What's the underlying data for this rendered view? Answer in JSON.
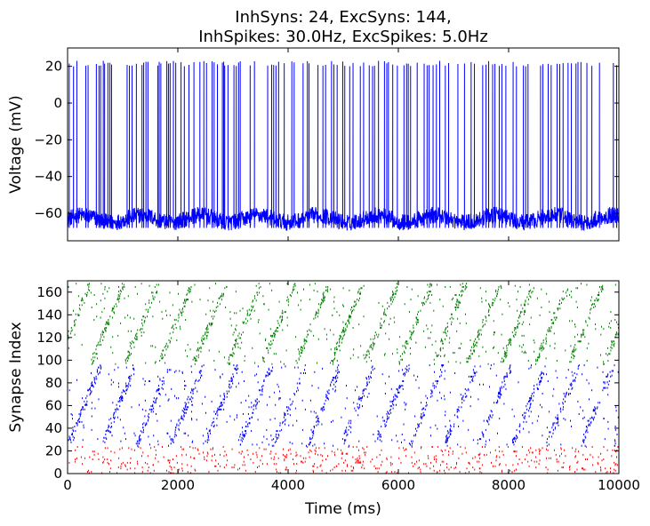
{
  "chart_data": [
    {
      "type": "line",
      "title_line1": "InhSyns: 24, ExcSyns: 144,",
      "title_line2": "InhSpikes: 30.0Hz, ExcSpikes: 5.0Hz",
      "xlabel": "",
      "ylabel": "Voltage (mV)",
      "xlim": [
        0,
        10000
      ],
      "ylim": [
        -75,
        30
      ],
      "yticks": [
        20,
        0,
        -20,
        -40,
        -60
      ],
      "ytick_labels": [
        "20",
        "0",
        "−20",
        "−40",
        "−60"
      ],
      "xticks": [
        0,
        2000,
        4000,
        6000,
        8000,
        10000
      ],
      "grid": false,
      "series": [
        {
          "color": "#0000ff",
          "baseline_mV": -63,
          "peak_mV": 23,
          "spike_times_ms": [
            30,
            110,
            170,
            330,
            370,
            520,
            570,
            600,
            650,
            670,
            730,
            770,
            800,
            1080,
            1120,
            1170,
            1250,
            1350,
            1380,
            1420,
            1460,
            1640,
            1660,
            1690,
            1800,
            1830,
            1860,
            1920,
            1960,
            2060,
            2120,
            2200,
            2290,
            2400,
            2470,
            2520,
            2620,
            2660,
            2720,
            2810,
            2830,
            2850,
            2910,
            3020,
            3060,
            3100,
            3130,
            3310,
            3390,
            3630,
            3700,
            3740,
            3780,
            3830,
            3930,
            4070,
            4110,
            4270,
            4350,
            4380,
            4540,
            4630,
            4680,
            4790,
            4830,
            4890,
            4990,
            5030,
            5120,
            5180,
            5310,
            5370,
            5470,
            5530,
            5570,
            5640,
            5750,
            5790,
            5820,
            5900,
            5980,
            6100,
            6150,
            6180,
            6220,
            6340,
            6470,
            6520,
            6560,
            6630,
            6690,
            6750,
            6850,
            6910,
            7080,
            7200,
            7320,
            7380,
            7530,
            7590,
            7640,
            7710,
            7750,
            7830,
            7880,
            7950,
            8080,
            8140,
            8270,
            8310,
            8350,
            8580,
            8620,
            8720,
            8770,
            8880,
            8930,
            8990,
            9080,
            9140,
            9220,
            9260,
            9310,
            9420,
            9510,
            9650,
            9900,
            9960
          ]
        }
      ]
    },
    {
      "type": "scatter",
      "xlabel": "Time (ms)",
      "ylabel": "Synapse Index",
      "xlim": [
        0,
        10000
      ],
      "ylim": [
        0,
        170
      ],
      "yticks": [
        0,
        20,
        40,
        60,
        80,
        100,
        120,
        140,
        160
      ],
      "xticks": [
        0,
        2000,
        4000,
        6000,
        8000,
        10000
      ],
      "grid": false,
      "series": [
        {
          "group": "inhibitory",
          "color": "#ff0000",
          "index_range": [
            0,
            24
          ],
          "rate_hz": 30.0
        },
        {
          "group": "excitatory",
          "color": "#0000ff",
          "index_range": [
            24,
            96
          ]
        },
        {
          "group": "excitatory",
          "color": "#008000",
          "index_range": [
            96,
            168
          ]
        }
      ]
    }
  ]
}
